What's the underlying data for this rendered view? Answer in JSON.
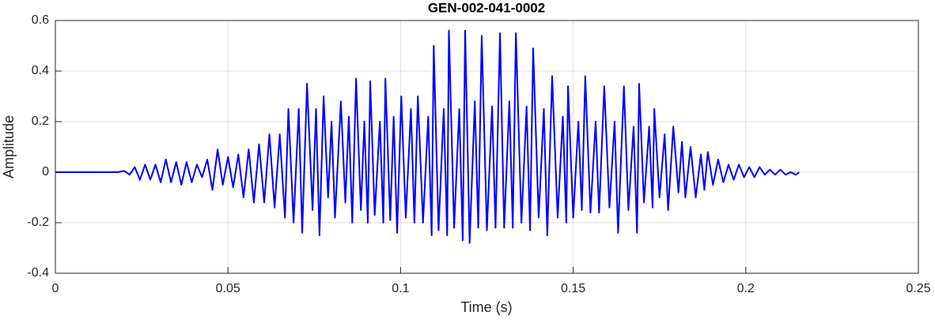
{
  "chart_data": {
    "type": "line",
    "title": "GEN-002-041-0002",
    "x_label": "Time (s)",
    "y_label": "Amplitude",
    "xlim": [
      0,
      0.25
    ],
    "xticks": [
      0,
      0.05,
      0.1,
      0.15,
      0.2,
      0.25
    ],
    "ylim": [
      -0.4,
      0.6
    ],
    "yticks": [
      -0.4,
      -0.2,
      0,
      0.2,
      0.4,
      0.6
    ],
    "grid": true,
    "x": [
      0,
      0.018,
      0.02,
      0.0215,
      0.023,
      0.0245,
      0.026,
      0.0275,
      0.029,
      0.0305,
      0.032,
      0.0335,
      0.035,
      0.0365,
      0.038,
      0.0395,
      0.041,
      0.0425,
      0.044,
      0.0455,
      0.047,
      0.0485,
      0.05,
      0.0515,
      0.053,
      0.0545,
      0.056,
      0.0575,
      0.059,
      0.0605,
      0.062,
      0.0635,
      0.065,
      0.0665,
      0.0675,
      0.069,
      0.0705,
      0.0715,
      0.0729,
      0.0745,
      0.0755,
      0.0765,
      0.0777,
      0.079,
      0.08,
      0.081,
      0.0827,
      0.084,
      0.085,
      0.086,
      0.0871,
      0.0885,
      0.0895,
      0.0905,
      0.0912,
      0.0925,
      0.094,
      0.095,
      0.0956,
      0.097,
      0.098,
      0.099,
      0.1002,
      0.1015,
      0.103,
      0.104,
      0.105,
      0.1065,
      0.108,
      0.109,
      0.1096,
      0.111,
      0.1125,
      0.1135,
      0.114,
      0.1155,
      0.117,
      0.118,
      0.1187,
      0.12,
      0.1215,
      0.1225,
      0.1235,
      0.125,
      0.1265,
      0.1275,
      0.1288,
      0.13,
      0.1315,
      0.1325,
      0.1334,
      0.135,
      0.1365,
      0.1375,
      0.1384,
      0.14,
      0.1415,
      0.1425,
      0.1439,
      0.1455,
      0.147,
      0.148,
      0.1485,
      0.15,
      0.1515,
      0.1525,
      0.1535,
      0.155,
      0.1565,
      0.1575,
      0.159,
      0.1605,
      0.162,
      0.163,
      0.1647,
      0.166,
      0.1675,
      0.1685,
      0.1691,
      0.1705,
      0.172,
      0.173,
      0.1735,
      0.175,
      0.1765,
      0.1775,
      0.179,
      0.1805,
      0.1815,
      0.1825,
      0.184,
      0.1855,
      0.187,
      0.188,
      0.189,
      0.1905,
      0.192,
      0.1935,
      0.195,
      0.1965,
      0.198,
      0.1995,
      0.201,
      0.2025,
      0.204,
      0.2055,
      0.207,
      0.2085,
      0.21,
      0.2115,
      0.213,
      0.2145,
      0.2155
    ],
    "series": [
      {
        "color": "#0000ff",
        "values": [
          0,
          0,
          0.005,
          -0.01,
          0.02,
          -0.03,
          0.03,
          -0.03,
          0.03,
          -0.04,
          0.05,
          -0.04,
          0.04,
          -0.05,
          0.04,
          -0.04,
          0.03,
          -0.02,
          0.05,
          -0.07,
          0.09,
          -0.05,
          0.06,
          -0.06,
          0.07,
          -0.1,
          0.09,
          -0.12,
          0.11,
          -0.12,
          0.15,
          -0.14,
          0.15,
          -0.18,
          0.25,
          -0.2,
          0.25,
          -0.24,
          0.35,
          -0.15,
          0.25,
          -0.25,
          0.3,
          -0.1,
          0.2,
          -0.18,
          0.28,
          -0.12,
          0.22,
          -0.2,
          0.37,
          -0.15,
          0.2,
          -0.2,
          0.36,
          -0.17,
          0.2,
          -0.2,
          0.37,
          -0.19,
          0.22,
          -0.24,
          0.3,
          -0.18,
          0.25,
          -0.2,
          0.3,
          -0.2,
          0.22,
          -0.25,
          0.5,
          -0.23,
          0.25,
          -0.25,
          0.56,
          -0.22,
          0.25,
          -0.27,
          0.56,
          -0.28,
          0.28,
          -0.22,
          0.54,
          -0.23,
          0.26,
          -0.22,
          0.55,
          -0.22,
          0.28,
          -0.22,
          0.55,
          -0.2,
          0.26,
          -0.23,
          0.49,
          -0.18,
          0.25,
          -0.25,
          0.38,
          -0.18,
          0.22,
          -0.2,
          0.34,
          -0.18,
          0.2,
          -0.15,
          0.38,
          -0.16,
          0.2,
          -0.16,
          0.34,
          -0.14,
          0.2,
          -0.24,
          0.34,
          -0.15,
          0.18,
          -0.24,
          0.35,
          -0.12,
          0.18,
          -0.14,
          0.25,
          -0.1,
          0.15,
          -0.15,
          0.18,
          -0.08,
          0.12,
          -0.1,
          0.1,
          -0.1,
          0.07,
          -0.07,
          0.08,
          -0.05,
          0.05,
          -0.04,
          0.03,
          -0.03,
          0.03,
          -0.02,
          0.02,
          -0.02,
          0.02,
          -0.01,
          0.01,
          -0.01,
          0.01,
          -0.01,
          0,
          -0.01,
          0
        ]
      }
    ]
  }
}
